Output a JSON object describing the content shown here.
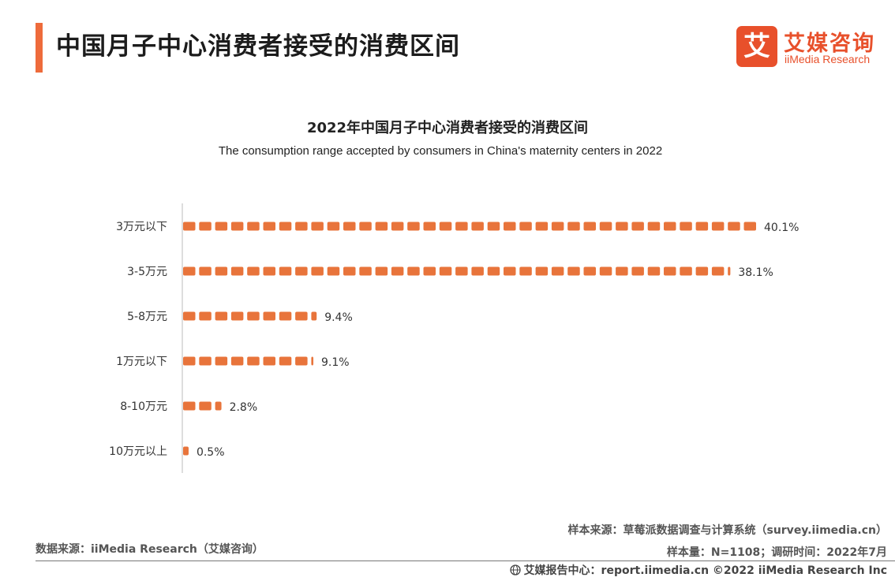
{
  "header": {
    "title": "中国月子中心消费者接受的消费区间"
  },
  "logo": {
    "mark": "艾",
    "name_cn": "艾媒咨询",
    "name_en": "iiMedia Research"
  },
  "chart_data": {
    "type": "bar",
    "orientation": "horizontal",
    "title": "2022年中国月子中心消费者接受的消费区间",
    "subtitle": "The consumption range accepted by consumers in China's maternity centers in 2022",
    "categories": [
      "3万元以下",
      "3-5万元",
      "5-8万元",
      "1万元以下",
      "8-10万元",
      "10万元以上"
    ],
    "values": [
      40.1,
      38.1,
      9.4,
      9.1,
      2.8,
      0.5
    ],
    "value_labels": [
      "40.1%",
      "38.1%",
      "9.4%",
      "9.1%",
      "2.8%",
      "0.5%"
    ],
    "unit": "%",
    "bar_style": "icon-units",
    "grid": false,
    "color": "#e8743b"
  },
  "footer": {
    "source": "数据来源：iiMedia Research（艾媒咨询）",
    "sample_source": "样本来源：草莓派数据调查与计算系统（survey.iimedia.cn）",
    "sample_info": "样本量：N=1108；调研时间：2022年7月",
    "report_center": "艾媒报告中心：report.iimedia.cn  ©2022  iiMedia Research  Inc"
  }
}
